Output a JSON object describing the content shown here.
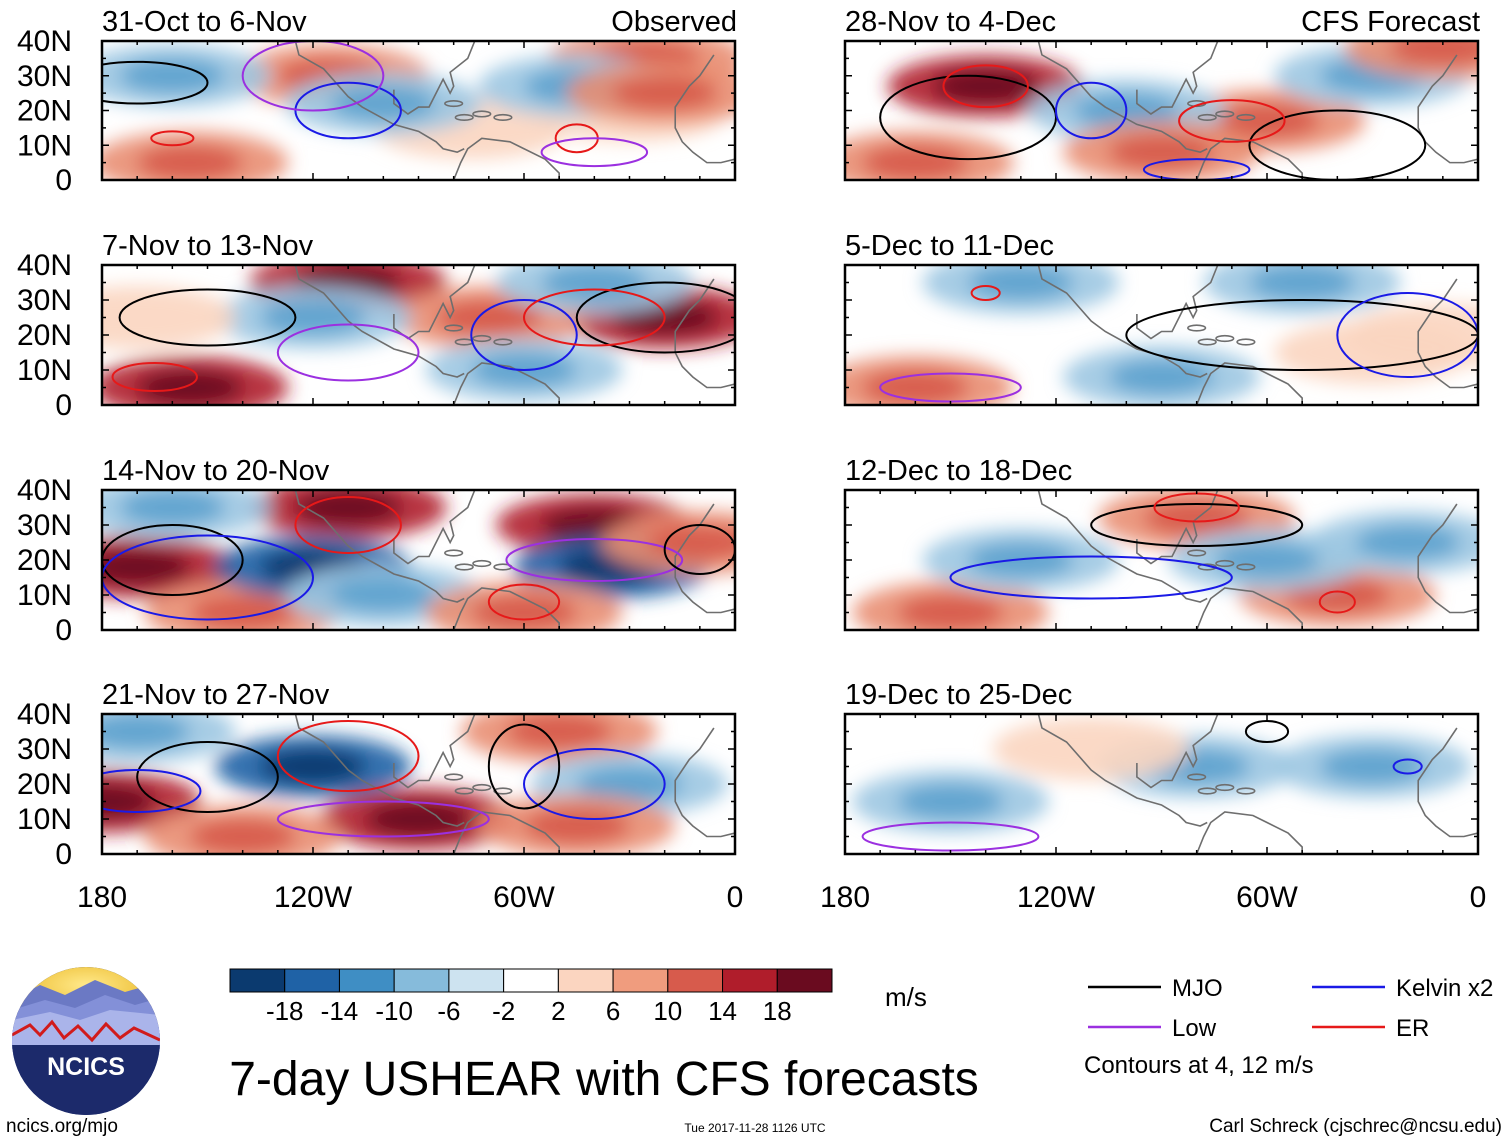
{
  "chart_data": {
    "type": "heatmap",
    "title": "7-day USHEAR with CFS forecasts",
    "variable": "USHEAR",
    "units": "m/s",
    "x_ticks": [
      "180",
      "120W",
      "60W",
      "0"
    ],
    "y_ticks": [
      "40N",
      "30N",
      "20N",
      "10N",
      "0"
    ],
    "xlim_deg_east": [
      -180,
      0
    ],
    "ylim_deg_north": [
      0,
      40
    ],
    "colorbar": {
      "levels": [
        "-18",
        "-14",
        "-10",
        "-6",
        "-2",
        "2",
        "6",
        "10",
        "14",
        "18"
      ],
      "colors": [
        "#0b3a6f",
        "#1f62a6",
        "#3f8ec4",
        "#86bbdb",
        "#cde3f0",
        "#ffffff",
        "#fbd5c0",
        "#f09c7e",
        "#d75b4c",
        "#b01d2b",
        "#6a0b1f"
      ]
    },
    "legend": {
      "entries": [
        {
          "label": "MJO",
          "color": "#000000"
        },
        {
          "label": "Kelvin x2",
          "color": "#1a1ae6"
        },
        {
          "label": "Low",
          "color": "#9b30e0"
        },
        {
          "label": "ER",
          "color": "#e61919"
        }
      ],
      "note": "Contours at 4, 12 m/s"
    },
    "panels": [
      {
        "title": "31-Oct to 6-Nov",
        "tag": "Observed"
      },
      {
        "title": "28-Nov to 4-Dec",
        "tag": "CFS Forecast"
      },
      {
        "title": "7-Nov to 13-Nov",
        "tag": ""
      },
      {
        "title": "5-Dec to 11-Dec",
        "tag": ""
      },
      {
        "title": "14-Nov to 20-Nov",
        "tag": ""
      },
      {
        "title": "12-Dec to 18-Dec",
        "tag": ""
      },
      {
        "title": "21-Nov to 27-Nov",
        "tag": ""
      },
      {
        "title": "19-Dec to 25-Dec",
        "tag": ""
      }
    ],
    "anomaly_features": [
      [
        [
          -155,
          5,
          1
        ],
        [
          -115,
          30,
          1
        ],
        [
          -25,
          35,
          1
        ],
        [
          -75,
          15,
          0
        ],
        [
          -30,
          20,
          0
        ],
        [
          -160,
          30,
          -1
        ],
        [
          -45,
          27,
          -1
        ],
        [
          -100,
          22,
          -1
        ],
        [
          -20,
          25,
          1
        ]
      ],
      [
        [
          -140,
          27,
          2
        ],
        [
          -60,
          17,
          1
        ],
        [
          -160,
          5,
          1
        ],
        [
          -100,
          20,
          -1
        ],
        [
          -30,
          30,
          -1
        ],
        [
          -10,
          38,
          1
        ],
        [
          -90,
          8,
          1
        ]
      ],
      [
        [
          -155,
          5,
          2
        ],
        [
          -110,
          35,
          2
        ],
        [
          -20,
          25,
          2
        ],
        [
          -70,
          25,
          1
        ],
        [
          -120,
          25,
          -1
        ],
        [
          -60,
          10,
          -1
        ],
        [
          -40,
          35,
          -1
        ],
        [
          -170,
          25,
          0
        ]
      ],
      [
        [
          -160,
          5,
          1
        ],
        [
          -50,
          35,
          -1
        ],
        [
          -90,
          8,
          -1
        ],
        [
          -130,
          35,
          -1
        ],
        [
          -30,
          15,
          0
        ],
        [
          -10,
          20,
          0
        ]
      ],
      [
        [
          -170,
          18,
          2
        ],
        [
          -110,
          35,
          2
        ],
        [
          -40,
          30,
          2
        ],
        [
          -140,
          5,
          1
        ],
        [
          -120,
          18,
          -2
        ],
        [
          -35,
          18,
          -2
        ],
        [
          -160,
          35,
          -1
        ],
        [
          -10,
          25,
          1
        ],
        [
          -100,
          10,
          -1
        ],
        [
          -60,
          5,
          1
        ]
      ],
      [
        [
          -80,
          32,
          1
        ],
        [
          -150,
          5,
          1
        ],
        [
          -130,
          20,
          -1
        ],
        [
          -40,
          10,
          1
        ],
        [
          -20,
          25,
          -1
        ],
        [
          -60,
          20,
          -1
        ]
      ],
      [
        [
          -180,
          15,
          2
        ],
        [
          -90,
          10,
          2
        ],
        [
          -50,
          35,
          1
        ],
        [
          -120,
          25,
          -2
        ],
        [
          -170,
          35,
          -1
        ],
        [
          -30,
          20,
          -1
        ],
        [
          -45,
          8,
          1
        ],
        [
          -140,
          5,
          1
        ]
      ],
      [
        [
          -150,
          15,
          -1
        ],
        [
          -80,
          25,
          -1
        ],
        [
          -30,
          25,
          -1
        ],
        [
          -110,
          30,
          0
        ]
      ]
    ],
    "contour_overlays": [
      [
        [
          "MJO",
          -170,
          28,
          20,
          6
        ],
        [
          "Kelvin",
          -110,
          20,
          15,
          8
        ],
        [
          "Low",
          -120,
          30,
          20,
          10
        ],
        [
          "ER",
          -45,
          12,
          6,
          4
        ],
        [
          "ER",
          -160,
          12,
          6,
          2
        ],
        [
          "Low",
          -40,
          8,
          15,
          4
        ]
      ],
      [
        [
          "MJO",
          -145,
          18,
          25,
          12
        ],
        [
          "MJO",
          -40,
          10,
          25,
          10
        ],
        [
          "Kelvin",
          -110,
          20,
          10,
          8
        ],
        [
          "ER",
          -140,
          27,
          12,
          6
        ],
        [
          "ER",
          -70,
          17,
          15,
          6
        ],
        [
          "Kelvin",
          -80,
          3,
          15,
          3
        ]
      ],
      [
        [
          "MJO",
          -20,
          25,
          25,
          10
        ],
        [
          "MJO",
          -150,
          25,
          25,
          8
        ],
        [
          "Kelvin",
          -60,
          20,
          15,
          10
        ],
        [
          "ER",
          -40,
          25,
          20,
          8
        ],
        [
          "Low",
          -110,
          15,
          20,
          8
        ],
        [
          "ER",
          -165,
          8,
          12,
          4
        ]
      ],
      [
        [
          "MJO",
          -50,
          20,
          50,
          10
        ],
        [
          "Kelvin",
          -20,
          20,
          20,
          12
        ],
        [
          "ER",
          -140,
          32,
          4,
          2
        ],
        [
          "Low",
          -150,
          5,
          20,
          4
        ]
      ],
      [
        [
          "MJO",
          -160,
          20,
          20,
          10
        ],
        [
          "Kelvin",
          -150,
          15,
          30,
          12
        ],
        [
          "ER",
          -110,
          30,
          15,
          8
        ],
        [
          "Low",
          -40,
          20,
          25,
          6
        ],
        [
          "MJO",
          -10,
          23,
          10,
          7
        ],
        [
          "ER",
          -60,
          8,
          10,
          5
        ]
      ],
      [
        [
          "MJO",
          -80,
          30,
          30,
          6
        ],
        [
          "Kelvin",
          -110,
          15,
          40,
          6
        ],
        [
          "ER",
          -40,
          8,
          5,
          3
        ],
        [
          "ER",
          -80,
          35,
          12,
          4
        ]
      ],
      [
        [
          "MJO",
          -150,
          22,
          20,
          10
        ],
        [
          "Kelvin",
          -170,
          18,
          18,
          6
        ],
        [
          "Kelvin",
          -40,
          20,
          20,
          10
        ],
        [
          "ER",
          -110,
          28,
          20,
          10
        ],
        [
          "MJO",
          -60,
          25,
          10,
          12
        ],
        [
          "Low",
          -100,
          10,
          30,
          5
        ]
      ],
      [
        [
          "MJO",
          -60,
          35,
          6,
          3
        ],
        [
          "Kelvin",
          -20,
          25,
          4,
          2
        ],
        [
          "Low",
          -150,
          5,
          25,
          4
        ]
      ]
    ],
    "footer_left": "ncics.org/mjo",
    "timestamp": "Tue 2017-11-28 1126 UTC",
    "author": "Carl Schreck (cjschrec@ncsu.edu)",
    "logo_text": "NCICS"
  }
}
